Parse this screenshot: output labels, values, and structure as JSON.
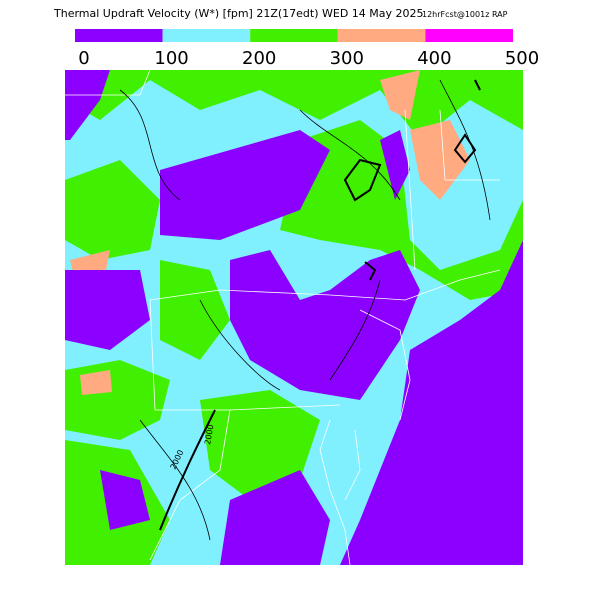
{
  "header": {
    "title": "Thermal Updraft Velocity (W*) [fpm] 21Z(17edt) WED 14 May 2025",
    "subtitle": "12hrFcst@1001z RAP"
  },
  "colorbar": {
    "ticks": [
      0,
      100,
      200,
      300,
      400,
      500
    ],
    "colors": [
      "#8c00ff",
      "#80f0ff",
      "#40f000",
      "#ffaa80",
      "#ff00ff"
    ]
  },
  "map": {
    "contour_labels": [
      "2000",
      "2000"
    ]
  }
}
